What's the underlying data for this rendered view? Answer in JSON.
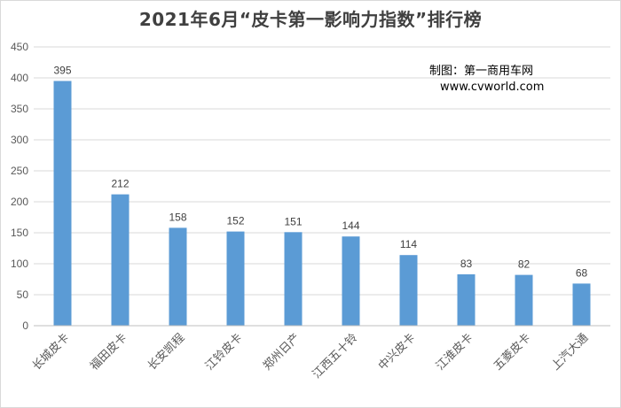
{
  "chart_data": {
    "type": "bar",
    "title": "2021年6月“皮卡第一影响力指数”排行榜",
    "categories": [
      "长城皮卡",
      "福田皮卡",
      "长安凯程",
      "江铃皮卡",
      "郑州日产",
      "江西五十铃",
      "中兴皮卡",
      "江淮皮卡",
      "五菱皮卡",
      "上汽大通"
    ],
    "values": [
      395,
      212,
      158,
      152,
      151,
      144,
      114,
      83,
      82,
      68
    ],
    "data_labels": [
      "395",
      "212",
      "158",
      "152",
      "151",
      "144",
      "114",
      "83",
      "82",
      "68"
    ],
    "y_ticks": [
      "0",
      "50",
      "100",
      "150",
      "200",
      "250",
      "300",
      "350",
      "400",
      "450"
    ],
    "ylim": [
      0,
      450
    ],
    "grid": true,
    "bar_color": "#5b9bd5",
    "grid_color": "#d9d9d9",
    "legend": "none"
  },
  "credit": {
    "line1": "制图：第一商用车网",
    "line2": "www.cvworld.com"
  }
}
